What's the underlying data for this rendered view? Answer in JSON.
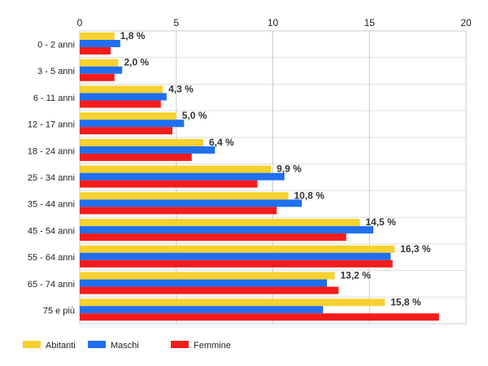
{
  "chart_data": {
    "type": "bar",
    "orientation": "horizontal",
    "categories": [
      "0 - 2 anni",
      "3 - 5 anni",
      "6 - 11 anni",
      "12 - 17 anni",
      "18 - 24 anni",
      "25 - 34 anni",
      "35 - 44 anni",
      "45 - 54 anni",
      "55 - 64 anni",
      "65 - 74 anni",
      "75 e più"
    ],
    "series": [
      {
        "name": "Abitanti",
        "color": "#f7d12e",
        "values": [
          1.8,
          2.0,
          4.3,
          5.0,
          6.4,
          9.9,
          10.8,
          14.5,
          16.3,
          13.2,
          15.8
        ]
      },
      {
        "name": "Maschi",
        "color": "#1f6ff0",
        "values": [
          2.1,
          2.2,
          4.5,
          5.4,
          7.0,
          10.6,
          11.5,
          15.2,
          16.1,
          12.8,
          12.6
        ]
      },
      {
        "name": "Femmine",
        "color": "#f51b1b",
        "values": [
          1.6,
          1.8,
          4.2,
          4.8,
          5.8,
          9.2,
          10.2,
          13.8,
          16.2,
          13.4,
          18.6
        ]
      }
    ],
    "data_labels": [
      "1,8 %",
      "2,0 %",
      "4,3 %",
      "5,0 %",
      "6,4 %",
      "9,9 %",
      "10,8 %",
      "14,5 %",
      "16,3 %",
      "13,2 %",
      "15,8 %"
    ],
    "xticks": [
      0,
      5,
      10,
      15,
      20
    ],
    "xlim": [
      0,
      20
    ],
    "x_axis_position": "top",
    "grid": true,
    "legend_position": "bottom-left",
    "title": "",
    "xlabel": "",
    "ylabel": ""
  }
}
